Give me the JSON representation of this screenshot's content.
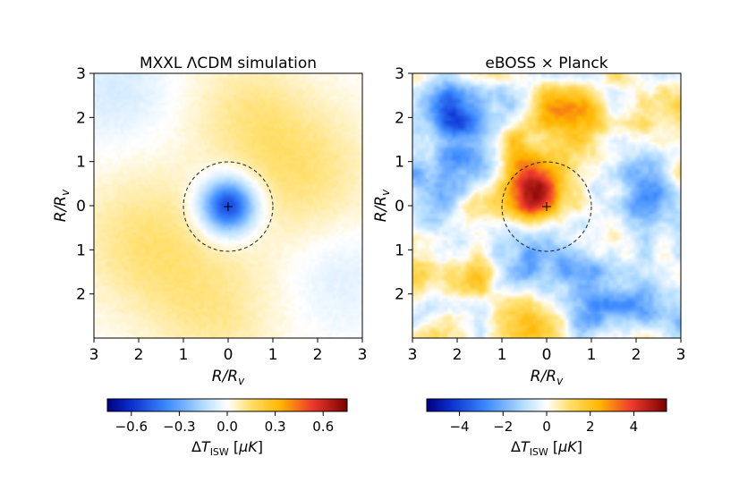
{
  "chart_data": [
    {
      "type": "heatmap",
      "title": "MXXL ΛCDM simulation",
      "xlabel": "R/R_v",
      "ylabel": "R/R_v",
      "xlim": [
        -3,
        3
      ],
      "ylim": [
        -3,
        3
      ],
      "x_ticks": [
        -3,
        -2,
        -1,
        0,
        1,
        2,
        3
      ],
      "x_tick_labels": [
        "3",
        "2",
        "1",
        "0",
        "1",
        "2",
        "3"
      ],
      "y_ticks": [
        3,
        2,
        1,
        0,
        -1,
        -2
      ],
      "y_tick_labels": [
        "3",
        "2",
        "1",
        "0",
        "1",
        "2"
      ],
      "annotations": [
        {
          "type": "dashed-circle",
          "center": [
            0,
            0
          ],
          "radius": 1
        },
        {
          "type": "plus-marker",
          "at": [
            0,
            0
          ]
        }
      ],
      "field": {
        "center_min": -0.6,
        "positive_blobs": [
          {
            "x": -1.8,
            "y": -0.8,
            "amp": 0.13,
            "s": 1.1
          },
          {
            "x": 1.6,
            "y": 0.8,
            "amp": 0.13,
            "s": 1.1
          },
          {
            "x": 0.4,
            "y": 2.2,
            "amp": 0.09,
            "s": 0.9
          },
          {
            "x": -0.3,
            "y": -2.4,
            "amp": 0.1,
            "s": 1.0
          }
        ],
        "negative_blobs": [
          {
            "x": -2.5,
            "y": 2.6,
            "amp": 0.08,
            "s": 0.8
          },
          {
            "x": 2.5,
            "y": -1.6,
            "amp": 0.06,
            "s": 0.8
          }
        ]
      },
      "colorbar": {
        "min": -0.75,
        "max": 0.75,
        "ticks": [
          -0.6,
          -0.3,
          0.0,
          0.3,
          0.6
        ],
        "tick_labels": [
          "−0.6",
          "−0.3",
          "0.0",
          "0.3",
          "0.6"
        ],
        "label": "ΔT_ISW [μK]"
      }
    },
    {
      "type": "heatmap",
      "title": "eBOSS × Planck",
      "xlabel": "R/R_v",
      "ylabel": "R/R_v",
      "xlim": [
        -3,
        3
      ],
      "ylim": [
        -3,
        3
      ],
      "x_ticks": [
        -3,
        -2,
        -1,
        0,
        1,
        2,
        3
      ],
      "x_tick_labels": [
        "3",
        "2",
        "1",
        "0",
        "1",
        "2",
        "3"
      ],
      "y_ticks": [
        3,
        2,
        1,
        0,
        -1,
        -2
      ],
      "y_tick_labels": [
        "3",
        "2",
        "1",
        "0",
        "1",
        "2"
      ],
      "annotations": [
        {
          "type": "dashed-circle",
          "center": [
            0,
            0
          ],
          "radius": 1
        },
        {
          "type": "plus-marker",
          "at": [
            0,
            0
          ]
        }
      ],
      "field": {
        "blobs": [
          {
            "x": -0.3,
            "y": 0.3,
            "amp": 4.6,
            "s": 0.45
          },
          {
            "x": 0.1,
            "y": 1.6,
            "amp": 2.2,
            "s": 0.55
          },
          {
            "x": 0.9,
            "y": 2.0,
            "amp": 1.3,
            "s": 0.5
          },
          {
            "x": -2.0,
            "y": 2.0,
            "amp": -3.4,
            "s": 0.5
          },
          {
            "x": -1.8,
            "y": 1.2,
            "amp": -1.6,
            "s": 0.6
          },
          {
            "x": 2.2,
            "y": 0.3,
            "amp": -1.8,
            "s": 0.7
          },
          {
            "x": 1.5,
            "y": -1.8,
            "amp": -1.6,
            "s": 0.8
          },
          {
            "x": -0.4,
            "y": -1.3,
            "amp": -1.4,
            "s": 0.6
          },
          {
            "x": -1.8,
            "y": -1.8,
            "amp": 1.6,
            "s": 0.6
          },
          {
            "x": -0.3,
            "y": -2.6,
            "amp": 1.6,
            "s": 0.5
          },
          {
            "x": 1.9,
            "y": 2.4,
            "amp": 1.0,
            "s": 0.45
          },
          {
            "x": 2.6,
            "y": -0.8,
            "amp": 1.1,
            "s": 0.45
          },
          {
            "x": -2.6,
            "y": 0.3,
            "amp": -0.9,
            "s": 0.5
          }
        ]
      },
      "colorbar": {
        "min": -5.5,
        "max": 5.5,
        "ticks": [
          -4,
          -2,
          0,
          2,
          4
        ],
        "tick_labels": [
          "−4",
          "−2",
          "0",
          "2",
          "4"
        ],
        "label": "ΔT_ISW [μK]"
      }
    }
  ]
}
